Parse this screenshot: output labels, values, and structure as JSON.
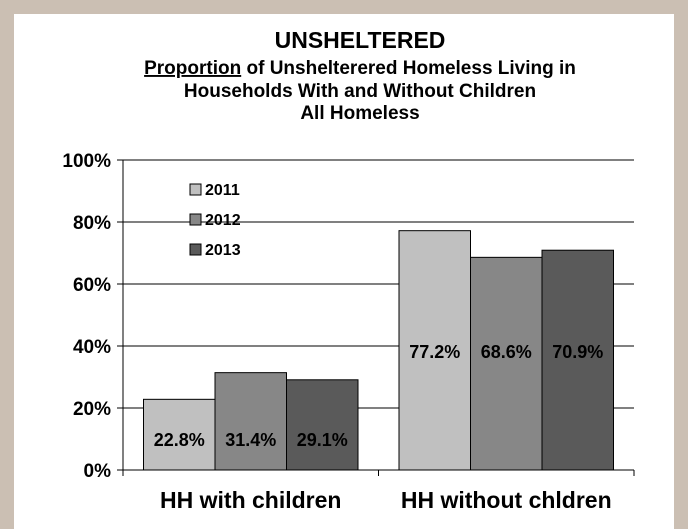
{
  "chart_data": {
    "type": "bar",
    "title": "UNSHELTERED",
    "subtitle_underlined": "Proportion",
    "subtitle_rest": " of Unshelterered Homeless Living in",
    "subtitle_line2": "Households With and Without Children",
    "subtitle_line3": "All Homeless",
    "categories": [
      "HH with children",
      "HH without chldren"
    ],
    "series": [
      {
        "name": "2011",
        "color": "#c0c0c0",
        "values": [
          22.8,
          77.2
        ],
        "labels": [
          "22.8%",
          "77.2%"
        ]
      },
      {
        "name": "2012",
        "color": "#878787",
        "values": [
          31.4,
          68.6
        ],
        "labels": [
          "31.4%",
          "68.6%"
        ]
      },
      {
        "name": "2013",
        "color": "#5a5a5a",
        "values": [
          29.1,
          70.9
        ],
        "labels": [
          "29.1%",
          "70.9%"
        ]
      }
    ],
    "ylim": [
      0,
      100
    ],
    "yticks": [
      0,
      20,
      40,
      60,
      80,
      100
    ],
    "ytick_labels": [
      "0%",
      "20%",
      "40%",
      "60%",
      "80%",
      "100%"
    ],
    "grid": true,
    "legend_position": "top-left inside plot"
  }
}
